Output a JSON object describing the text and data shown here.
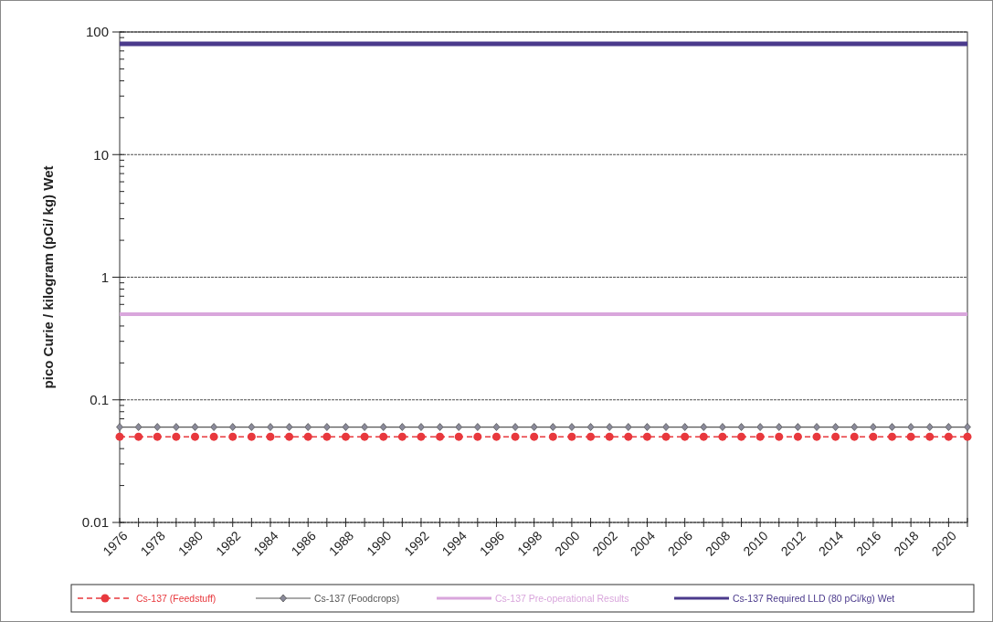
{
  "chart_data": {
    "type": "line",
    "ylabel": "pico Curie / kilogram (pCi/ kg) Wet",
    "categories": [
      "1976",
      null,
      "1978",
      null,
      "1980",
      null,
      "1982",
      null,
      "1984",
      null,
      "1986",
      null,
      "1988",
      null,
      "1990",
      null,
      "1992",
      null,
      "1994",
      null,
      "1996",
      null,
      "1998",
      null,
      "2000",
      null,
      "2002",
      null,
      "2004",
      null,
      "2006",
      null,
      "2008",
      null,
      "2010",
      null,
      "2012",
      null,
      "2014",
      null,
      "2016",
      null,
      "2018",
      null,
      "2020",
      null
    ],
    "series": [
      {
        "name": "Cs-137 (Feedstuff)",
        "color": "#e8383d",
        "marker": "circle",
        "line_style": "dashed",
        "values": [
          0.05,
          0.05,
          0.05,
          0.05,
          0.05,
          0.05,
          0.05,
          0.05,
          0.05,
          0.05,
          0.05,
          0.05,
          0.05,
          0.05,
          0.05,
          0.05,
          0.05,
          0.05,
          0.05,
          0.05,
          0.05,
          0.05,
          0.05,
          0.05,
          0.05,
          0.05,
          0.05,
          0.05,
          0.05,
          0.05,
          0.05,
          0.05,
          0.05,
          0.05,
          0.05,
          0.05,
          0.05,
          0.05,
          0.05,
          0.05,
          0.05,
          0.05,
          0.05,
          0.05,
          0.05,
          0.05
        ]
      },
      {
        "name": "Cs-137 (Foodcrops)",
        "color": "#555555",
        "marker": "diamond",
        "line_style": "solid",
        "values": [
          0.06,
          0.06,
          0.06,
          0.06,
          0.06,
          0.06,
          0.06,
          0.06,
          0.06,
          0.06,
          0.06,
          0.06,
          0.06,
          0.06,
          0.06,
          0.06,
          0.06,
          0.06,
          0.06,
          0.06,
          0.06,
          0.06,
          0.06,
          0.06,
          0.06,
          0.06,
          0.06,
          0.06,
          0.06,
          0.06,
          0.06,
          0.06,
          0.06,
          0.06,
          0.06,
          0.06,
          0.06,
          0.06,
          0.06,
          0.06,
          0.06,
          0.06,
          0.06,
          0.06,
          0.06,
          0.06
        ]
      },
      {
        "name": "Cs-137 Pre-operational Results",
        "color": "#d9a6dc",
        "marker": "none",
        "line_style": "solid",
        "values": [
          0.5,
          0.5,
          0.5,
          0.5,
          0.5,
          0.5,
          0.5,
          0.5,
          0.5,
          0.5,
          0.5,
          0.5,
          0.5,
          0.5,
          0.5,
          0.5,
          0.5,
          0.5,
          0.5,
          0.5,
          0.5,
          0.5,
          0.5,
          0.5,
          0.5,
          0.5,
          0.5,
          0.5,
          0.5,
          0.5,
          0.5,
          0.5,
          0.5,
          0.5,
          0.5,
          0.5,
          0.5,
          0.5,
          0.5,
          0.5,
          0.5,
          0.5,
          0.5,
          0.5,
          0.5,
          0.5
        ]
      },
      {
        "name": "Cs-137 Required LLD (80 pCi/kg) Wet",
        "color": "#4b3a8c",
        "marker": "none",
        "line_style": "solid",
        "values": [
          80,
          80,
          80,
          80,
          80,
          80,
          80,
          80,
          80,
          80,
          80,
          80,
          80,
          80,
          80,
          80,
          80,
          80,
          80,
          80,
          80,
          80,
          80,
          80,
          80,
          80,
          80,
          80,
          80,
          80,
          80,
          80,
          80,
          80,
          80,
          80,
          80,
          80,
          80,
          80,
          80,
          80,
          80,
          80,
          80,
          80
        ]
      }
    ],
    "log": "y",
    "ylim": [
      0.01,
      100
    ],
    "yticks": [
      0.01,
      {
        "value": 0.02,
        "label": null
      },
      {
        "value": 0.03,
        "label": null
      },
      {
        "value": 0.04,
        "label": null
      },
      {
        "value": 0.05,
        "label": null
      },
      {
        "value": 0.06,
        "label": null
      },
      {
        "value": 0.07,
        "label": null
      },
      {
        "value": 0.08,
        "label": null
      },
      {
        "value": 0.09,
        "label": null
      },
      0.1,
      {
        "value": 0.2,
        "label": null
      },
      {
        "value": 0.3,
        "label": null
      },
      {
        "value": 0.4,
        "label": null
      },
      {
        "value": 0.5,
        "label": null
      },
      {
        "value": 0.6,
        "label": null
      },
      {
        "value": 0.7,
        "label": null
      },
      {
        "value": 0.8,
        "label": null
      },
      {
        "value": 0.9,
        "label": null
      },
      1,
      {
        "value": 2,
        "label": null
      },
      {
        "value": 3,
        "label": null
      },
      {
        "value": 4,
        "label": null
      },
      {
        "value": 5,
        "label": null
      },
      {
        "value": 6,
        "label": null
      },
      {
        "value": 7,
        "label": null
      },
      {
        "value": 8,
        "label": null
      },
      {
        "value": 9,
        "label": null
      },
      10,
      {
        "value": 20,
        "label": null
      },
      {
        "value": 30,
        "label": null
      },
      {
        "value": 40,
        "label": null
      },
      {
        "value": 50,
        "label": null
      },
      {
        "value": 60,
        "label": null
      },
      {
        "value": 70,
        "label": null
      },
      {
        "value": 80,
        "label": null
      },
      {
        "value": 90,
        "label": null
      },
      100
    ],
    "grid": "y",
    "legend": "bottom"
  }
}
